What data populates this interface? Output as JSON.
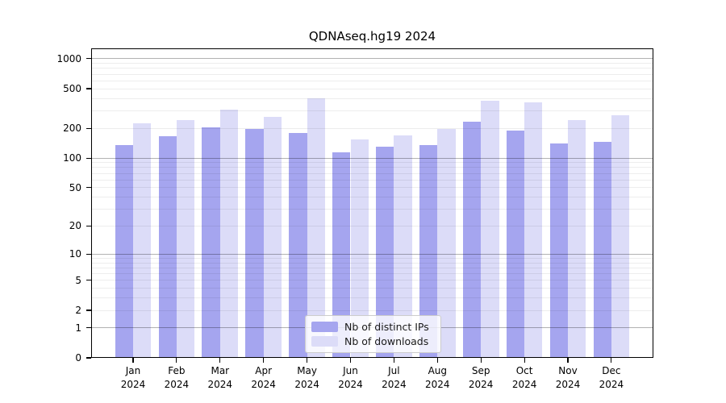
{
  "chart_data": {
    "type": "bar",
    "title": "QDNAseq.hg19 2024",
    "yscale": "log1p",
    "ylim": [
      0,
      1270
    ],
    "y_ticks": [
      0,
      1,
      2,
      5,
      10,
      20,
      50,
      100,
      200,
      500,
      1000
    ],
    "major_gridline_values": [
      1,
      10,
      100,
      1000
    ],
    "grid": true,
    "categories": [
      "Jan",
      "Feb",
      "Mar",
      "Apr",
      "May",
      "Jun",
      "Jul",
      "Aug",
      "Sep",
      "Oct",
      "Nov",
      "Dec"
    ],
    "category_year": "2024",
    "series": [
      {
        "name": "Nb of distinct IPs",
        "color": "#a5a5ef",
        "values": [
          136,
          167,
          205,
          195,
          180,
          115,
          130,
          135,
          235,
          188,
          140,
          145
        ]
      },
      {
        "name": "Nb of downloads",
        "color": "#dcdcf8",
        "values": [
          224,
          243,
          310,
          260,
          400,
          155,
          170,
          197,
          375,
          367,
          243,
          272
        ]
      }
    ],
    "legend": {
      "position": "bottom-center",
      "entries": [
        "Nb of distinct IPs",
        "Nb of downloads"
      ]
    }
  }
}
